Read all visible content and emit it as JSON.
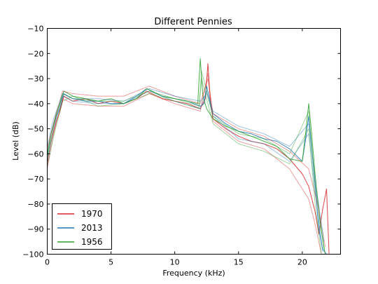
{
  "chart_data": {
    "type": "line",
    "title": "Different Pennies",
    "xlabel": "Frequency (kHz)",
    "ylabel": "Level (dB)",
    "xlim": [
      0,
      23
    ],
    "ylim": [
      -100,
      -10
    ],
    "xticks": [
      0,
      5,
      10,
      15,
      20
    ],
    "yticks": [
      -100,
      -90,
      -80,
      -70,
      -60,
      -50,
      -40,
      -30,
      -20,
      -10
    ],
    "grid": false,
    "legend": {
      "position": "lower-left",
      "entries": [
        {
          "label": "1970",
          "color": "#d62728"
        },
        {
          "label": "2013",
          "color": "#1f77b4"
        },
        {
          "label": "1956",
          "color": "#2ca02c"
        }
      ]
    },
    "series": [
      {
        "name": "1970",
        "color": "#d62728",
        "peak_freq": 12.6,
        "peak_level": -24,
        "x": [
          0,
          0.3,
          0.7,
          1.0,
          1.3,
          2,
          3,
          4,
          5,
          6,
          7,
          7.8,
          9,
          10,
          11,
          12,
          12.4,
          12.6,
          12.8,
          13,
          14,
          15,
          16,
          17,
          18,
          19,
          20,
          20.5,
          21,
          21.3,
          21.6,
          21.9,
          22.1
        ],
        "y": [
          -64,
          -55,
          -47,
          -43,
          -37,
          -39,
          -38,
          -40,
          -39,
          -40,
          -38,
          -35,
          -38,
          -39,
          -40,
          -42,
          -38,
          -24,
          -40,
          -46,
          -50,
          -53,
          -55,
          -56,
          -58,
          -62,
          -68,
          -73,
          -83,
          -92,
          -82,
          -74,
          -100
        ]
      },
      {
        "name": "2013",
        "color": "#1f77b4",
        "peak_freq": 20.5,
        "peak_level": -45,
        "x": [
          0,
          0.3,
          0.7,
          1.0,
          1.3,
          2,
          3,
          4,
          5,
          6,
          7,
          7.8,
          9,
          10,
          11,
          12,
          12.3,
          12.5,
          13,
          14,
          15,
          16,
          17,
          18,
          19,
          20,
          20.3,
          20.5,
          20.7,
          21,
          21.3,
          21.6,
          21.9
        ],
        "y": [
          -61,
          -52,
          -45,
          -42,
          -36,
          -38,
          -39,
          -39,
          -40,
          -40,
          -37,
          -34,
          -37,
          -38,
          -39,
          -41,
          -40,
          -33,
          -44,
          -48,
          -51,
          -52,
          -54,
          -55,
          -58,
          -63,
          -53,
          -45,
          -56,
          -72,
          -90,
          -98,
          -100
        ]
      },
      {
        "name": "1956",
        "color": "#2ca02c",
        "peak_freq": 12.0,
        "peak_level": -22,
        "x": [
          0,
          0.3,
          0.7,
          1.0,
          1.3,
          2,
          3,
          4,
          5,
          6,
          7,
          7.8,
          9,
          10,
          11,
          11.8,
          12.0,
          12.2,
          12.5,
          13,
          14,
          15,
          16,
          17,
          18,
          19,
          20,
          20.3,
          20.5,
          20.7,
          21,
          21.4,
          21.8
        ],
        "y": [
          -60,
          -52,
          -44,
          -40,
          -35,
          -37,
          -38,
          -39,
          -38,
          -40,
          -38,
          -34,
          -37,
          -38,
          -39,
          -40,
          -22,
          -37,
          -42,
          -46,
          -49,
          -51,
          -53,
          -55,
          -57,
          -62,
          -63,
          -50,
          -40,
          -50,
          -68,
          -88,
          -100
        ]
      },
      {
        "x": [
          0,
          0.5,
          1.2,
          2,
          4,
          6,
          8,
          10,
          12,
          12.6,
          13,
          15,
          17,
          19,
          20.5,
          21,
          21.5
        ],
        "y": [
          -66,
          -52,
          -38,
          -40,
          -41,
          -41,
          -36,
          -40,
          -43,
          -28,
          -47,
          -55,
          -58,
          -66,
          -78,
          -88,
          -100
        ],
        "color": "#d62728"
      },
      {
        "x": [
          0,
          0.5,
          1.2,
          2,
          4,
          6,
          8,
          10,
          12,
          12.6,
          13,
          15,
          17,
          19,
          20.5,
          21.2,
          21.8
        ],
        "y": [
          -58,
          -48,
          -35,
          -36,
          -37,
          -37,
          -33,
          -37,
          -40,
          -30,
          -44,
          -50,
          -53,
          -59,
          -66,
          -80,
          -97
        ],
        "color": "#d62728"
      },
      {
        "x": [
          0,
          0.5,
          1.2,
          2,
          4,
          6,
          8,
          10,
          12,
          12.5,
          13,
          15,
          17,
          19,
          20.5,
          21,
          21.6
        ],
        "y": [
          -63,
          -50,
          -37,
          -39,
          -40,
          -40,
          -35,
          -39,
          -42,
          -35,
          -45,
          -54,
          -56,
          -63,
          -52,
          -75,
          -99
        ],
        "color": "#1f77b4"
      },
      {
        "x": [
          0,
          0.5,
          1.2,
          2,
          4,
          6,
          8,
          10,
          12,
          12.5,
          13,
          15,
          17,
          19,
          20.5,
          21,
          21.7
        ],
        "y": [
          -57,
          -46,
          -36,
          -38,
          -38,
          -39,
          -34,
          -37,
          -39,
          -36,
          -43,
          -49,
          -52,
          -57,
          -48,
          -70,
          -95
        ],
        "color": "#1f77b4"
      },
      {
        "x": [
          0,
          0.5,
          1.2,
          2,
          4,
          6,
          8,
          10,
          11.9,
          12.1,
          13,
          15,
          17,
          19,
          20.5,
          21,
          21.7
        ],
        "y": [
          -62,
          -49,
          -36,
          -38,
          -39,
          -39,
          -35,
          -38,
          -41,
          -27,
          -45,
          -52,
          -54,
          -60,
          -43,
          -72,
          -98
        ],
        "color": "#2ca02c"
      },
      {
        "x": [
          0,
          0.5,
          1.2,
          2,
          4,
          6,
          8,
          10,
          11.9,
          12.1,
          13,
          15,
          17,
          19,
          20.5,
          21,
          21.5
        ],
        "y": [
          -65,
          -53,
          -39,
          -37,
          -41,
          -40,
          -36,
          -39,
          -42,
          -30,
          -48,
          -56,
          -59,
          -64,
          -50,
          -80,
          -100
        ],
        "color": "#2ca02c"
      }
    ]
  }
}
